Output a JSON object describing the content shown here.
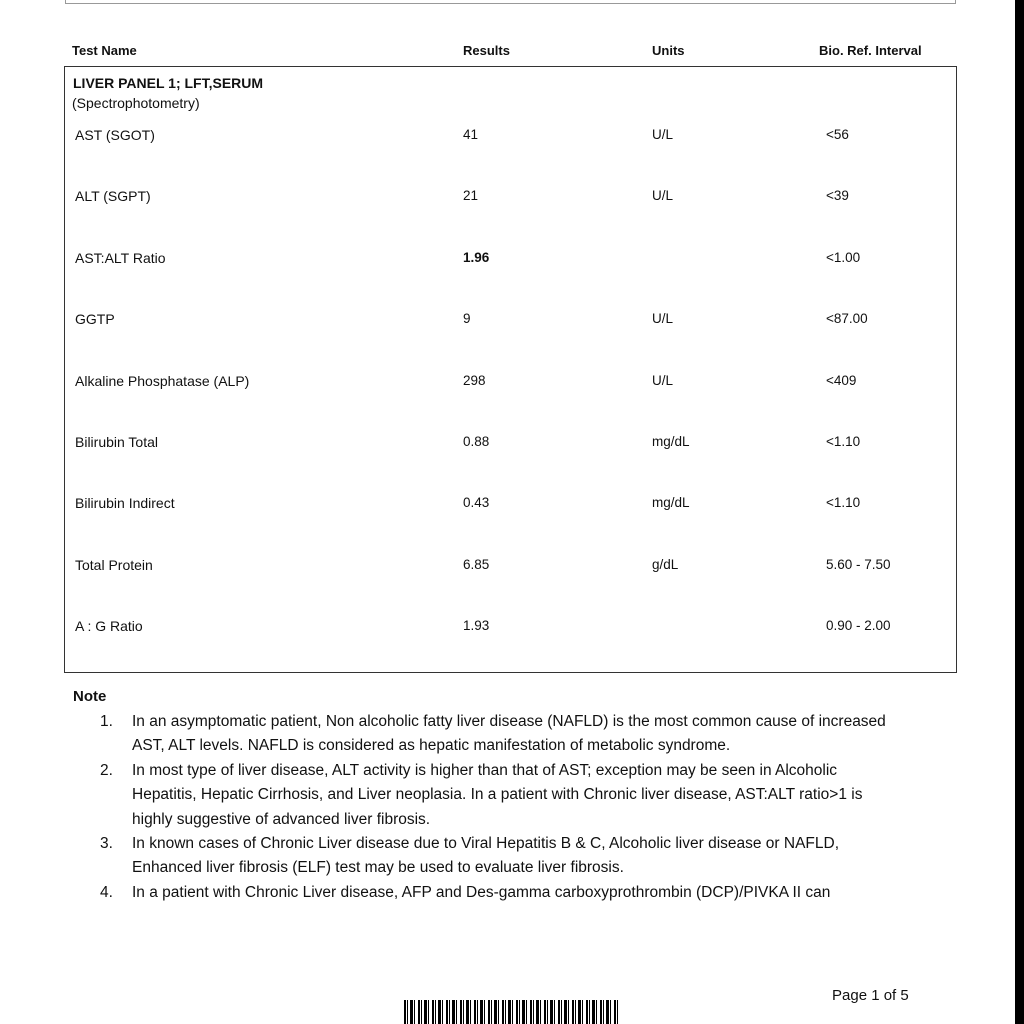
{
  "header": {
    "test_name": "Test Name",
    "results": "Results",
    "units": "Units",
    "ref": "Bio. Ref. Interval"
  },
  "panel": {
    "title": "LIVER PANEL 1; LFT,SERUM",
    "method": "(Spectrophotometry)",
    "rows": [
      {
        "name": "AST (SGOT)",
        "result": "41",
        "unit": "U/L",
        "ref": "<56",
        "bold": false
      },
      {
        "name": "ALT (SGPT)",
        "result": "21",
        "unit": "U/L",
        "ref": "<39",
        "bold": false
      },
      {
        "name": "AST:ALT Ratio",
        "result": "1.96",
        "unit": "",
        "ref": "<1.00",
        "bold": true
      },
      {
        "name": "GGTP",
        "result": "9",
        "unit": "U/L",
        "ref": "<87.00",
        "bold": false
      },
      {
        "name": "Alkaline Phosphatase (ALP)",
        "result": "298",
        "unit": "U/L",
        "ref": "<409",
        "bold": false
      },
      {
        "name": "Bilirubin  Total",
        "result": "0.88",
        "unit": "mg/dL",
        "ref": "<1.10",
        "bold": false
      },
      {
        "name": "Bilirubin  Indirect",
        "result": "0.43",
        "unit": "mg/dL",
        "ref": "<1.10",
        "bold": false
      },
      {
        "name": "Total Protein",
        "result": "6.85",
        "unit": "g/dL",
        "ref": "5.60 - 7.50",
        "bold": false
      },
      {
        "name": "A : G Ratio",
        "result": "1.93",
        "unit": "",
        "ref": "0.90 - 2.00",
        "bold": false
      }
    ]
  },
  "note": {
    "title": "Note",
    "items": [
      {
        "num": "1.",
        "text": "In an asymptomatic patient, Non alcoholic fatty liver disease (NAFLD) is the most common cause of increased AST, ALT levels. NAFLD is considered as hepatic manifestation of metabolic syndrome."
      },
      {
        "num": "2.",
        "text": "In most type of liver disease, ALT activity is higher than that of AST; exception may be seen in Alcoholic Hepatitis, Hepatic Cirrhosis, and Liver neoplasia. In a patient with Chronic liver disease, AST:ALT ratio>1 is highly suggestive of advanced liver fibrosis."
      },
      {
        "num": "3.",
        "text": "In known cases of Chronic Liver disease due to Viral Hepatitis B & C, Alcoholic liver disease or NAFLD, Enhanced liver fibrosis (ELF) test may be used  to evaluate liver fibrosis."
      },
      {
        "num": "4.",
        "text": "In a patient with Chronic Liver disease,  AFP and Des-gamma carboxyprothrombin (DCP)/PIVKA II can"
      }
    ]
  },
  "footer": {
    "page": "Page 1 of 5"
  }
}
